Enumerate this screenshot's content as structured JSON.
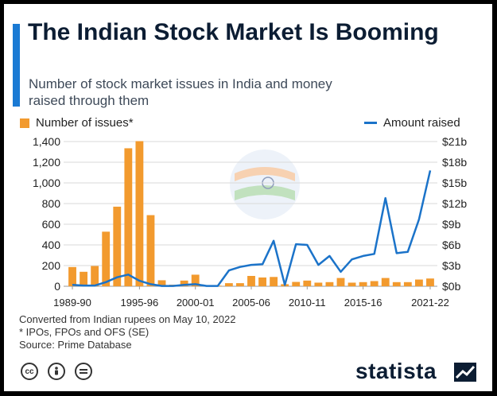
{
  "header": {
    "title": "The Indian Stock Market Is Booming",
    "subtitle": "Number of stock market issues in India and money raised through them"
  },
  "legend": {
    "bars_label": "Number of issues*",
    "line_label": "Amount raised"
  },
  "colors": {
    "accent": "#1a7ad4",
    "bars": "#f29a2e",
    "line": "#1b73c9",
    "grid": "#d9d9d9",
    "title": "#0c1d33"
  },
  "icons": [
    "cc-icon",
    "person-icon",
    "equals-icon",
    "statista-logo-icon",
    "india-flag-icon"
  ],
  "chart_data": {
    "type": "bar",
    "title": "The Indian Stock Market Is Booming",
    "x": [
      "1989-90",
      "1990-91",
      "1991-92",
      "1992-93",
      "1993-94",
      "1994-95",
      "1995-96",
      "1996-97",
      "1997-98",
      "1998-99",
      "1999-00",
      "2000-01",
      "2001-02",
      "2002-03",
      "2003-04",
      "2004-05",
      "2005-06",
      "2006-07",
      "2007-08",
      "2008-09",
      "2009-10",
      "2010-11",
      "2011-12",
      "2012-13",
      "2013-14",
      "2014-15",
      "2015-16",
      "2016-17",
      "2017-18",
      "2018-19",
      "2019-20",
      "2020-21",
      "2021-22"
    ],
    "x_tick_labels": [
      "1989-90",
      "1995-96",
      "2000-01",
      "2005-06",
      "2010-11",
      "2015-16",
      "2021-22"
    ],
    "series": [
      {
        "name": "Number of issues*",
        "type": "bar",
        "axis": "left",
        "values": [
          186,
          140,
          196,
          528,
          770,
          1335,
          1404,
          688,
          58,
          15,
          55,
          112,
          8,
          6,
          30,
          30,
          100,
          85,
          90,
          20,
          42,
          55,
          35,
          40,
          80,
          35,
          40,
          50,
          80,
          40,
          40,
          65,
          75
        ]
      },
      {
        "name": "Amount raised",
        "type": "line",
        "axis": "right",
        "values": [
          0.2,
          0.1,
          0.1,
          0.6,
          1.3,
          1.7,
          0.8,
          0.3,
          0.05,
          0.05,
          0.2,
          0.3,
          0.05,
          0.05,
          2.3,
          2.8,
          3.1,
          3.2,
          6.6,
          0.2,
          6.1,
          6.0,
          3.1,
          4.4,
          2.1,
          3.9,
          4.4,
          4.7,
          12.8,
          4.8,
          5.0,
          9.7,
          16.8
        ]
      }
    ],
    "left_axis": {
      "ticks": [
        "0",
        "200",
        "400",
        "600",
        "800",
        "1,000",
        "1,200",
        "1,400"
      ],
      "ylim": [
        0,
        1400
      ]
    },
    "right_axis": {
      "ticks": [
        "$0b",
        "$3b",
        "$6b",
        "$9b",
        "$12b",
        "$15b",
        "$18b",
        "$21b"
      ],
      "ylim": [
        0,
        21
      ]
    },
    "grid": true,
    "legend_position": "top"
  },
  "notes": [
    "Converted from Indian rupees on May 10, 2022",
    "* IPOs, FPOs and OFS (SE)",
    "Source: Prime Database"
  ],
  "footer": {
    "brand": "statista"
  }
}
